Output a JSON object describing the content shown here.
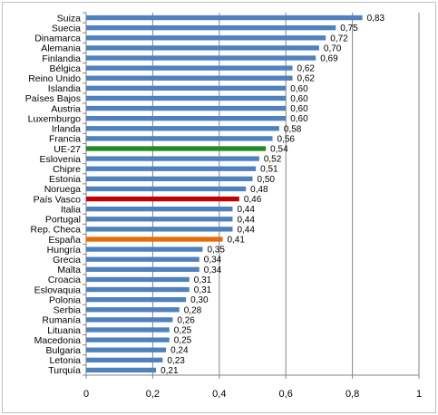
{
  "chart_data": {
    "type": "bar",
    "orientation": "horizontal",
    "categories": [
      "Suiza",
      "Suecia",
      "Dinamarca",
      "Alemania",
      "Finlandia",
      "Bélgica",
      "Reino Unido",
      "Islandia",
      "Países Bajos",
      "Austria",
      "Luxemburgo",
      "Irlanda",
      "Francia",
      "UE-27",
      "Eslovenia",
      "Chipre",
      "Estonia",
      "Noruega",
      "País Vasco",
      "Italia",
      "Portugal",
      "Rep. Checa",
      "España",
      "Hungría",
      "Grecia",
      "Malta",
      "Croacia",
      "Eslovaquia",
      "Polonia",
      "Serbia",
      "Rumanía",
      "Lituania",
      "Macedonia",
      "Bulgaria",
      "Letonia",
      "Turquía"
    ],
    "values": [
      0.83,
      0.75,
      0.72,
      0.7,
      0.69,
      0.62,
      0.62,
      0.6,
      0.6,
      0.6,
      0.6,
      0.58,
      0.56,
      0.54,
      0.52,
      0.51,
      0.5,
      0.48,
      0.46,
      0.44,
      0.44,
      0.44,
      0.41,
      0.35,
      0.34,
      0.34,
      0.31,
      0.31,
      0.3,
      0.28,
      0.26,
      0.25,
      0.25,
      0.24,
      0.23,
      0.21
    ],
    "value_labels": [
      "0,83",
      "0,75",
      "0,72",
      "0,70",
      "0,69",
      "0,62",
      "0,62",
      "0,60",
      "0,60",
      "0,60",
      "0,60",
      "0,58",
      "0,56",
      "0,54",
      "0,52",
      "0,51",
      "0,50",
      "0,48",
      "0,46",
      "0,44",
      "0,44",
      "0,44",
      "0,41",
      "0,35",
      "0,34",
      "0,34",
      "0,31",
      "0,31",
      "0,30",
      "0,28",
      "0,26",
      "0,25",
      "0,25",
      "0,24",
      "0,23",
      "0,21"
    ],
    "xlim": [
      0,
      1
    ],
    "x_ticks": [
      0,
      0.2,
      0.4,
      0.6,
      0.8,
      1
    ],
    "x_tick_labels": [
      "0",
      "0,2",
      "0,4",
      "0,6",
      "0,8",
      "1"
    ],
    "grid": "vertical",
    "colors": {
      "default": "#4f81bd",
      "highlights": {
        "UE-27": "#228b22",
        "País Vasco": "#c00000",
        "España": "#e46c0a"
      },
      "grid": "#868686",
      "axis": "#868686"
    }
  }
}
